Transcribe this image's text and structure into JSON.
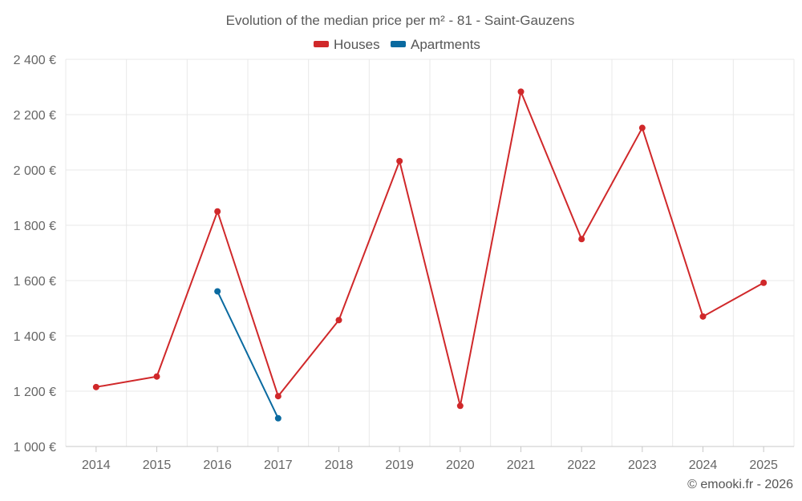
{
  "chart_data": {
    "type": "line",
    "title": "Evolution of the median price per m² - 81 - Saint-Gauzens",
    "categories": [
      "2014",
      "2015",
      "2016",
      "2017",
      "2018",
      "2019",
      "2020",
      "2021",
      "2022",
      "2023",
      "2024",
      "2025"
    ],
    "ylim": [
      1000,
      2400
    ],
    "yticks": [
      1000,
      1200,
      1400,
      1600,
      1800,
      2000,
      2200,
      2400
    ],
    "ytick_labels": [
      "1 000 €",
      "1 200 €",
      "1 400 €",
      "1 600 €",
      "1 800 €",
      "2 000 €",
      "2 200 €",
      "2 400 €"
    ],
    "grid": true,
    "legend_position": "top-center",
    "series": [
      {
        "name": "Houses",
        "color": "#d0282a",
        "values": [
          1215,
          1253,
          1850,
          1182,
          1457,
          2032,
          1147,
          2283,
          1750,
          2152,
          1470,
          1592
        ]
      },
      {
        "name": "Apartments",
        "color": "#0a6aa0",
        "values": [
          null,
          null,
          1561,
          1102,
          null,
          null,
          null,
          null,
          null,
          null,
          null,
          null
        ]
      }
    ]
  },
  "credit": "© emooki.fr - 2026"
}
